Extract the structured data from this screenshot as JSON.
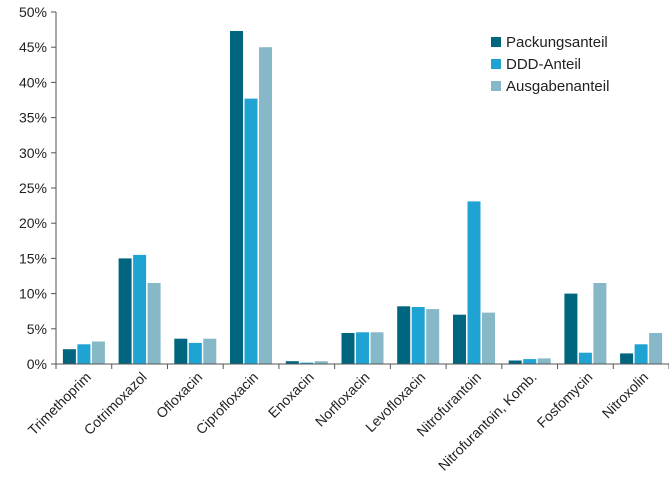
{
  "chart_data": {
    "type": "bar",
    "categories": [
      "Trimethoprim",
      "Cotrimoxazol",
      "Ofloxacin",
      "Ciprofloxacin",
      "Enoxacin",
      "Norfloxacin",
      "Levofloxacin",
      "Nitrofurantoin",
      "Nitrofurantoin, Komb.",
      "Fosfomycin",
      "Nitroxolin"
    ],
    "series": [
      {
        "name": "Packungsanteil",
        "color": "#006680",
        "values": [
          2.1,
          15.0,
          3.6,
          47.3,
          0.4,
          4.4,
          8.2,
          7.0,
          0.5,
          10.0,
          1.5
        ]
      },
      {
        "name": "DDD-Anteil",
        "color": "#1fa3d2",
        "values": [
          2.8,
          15.5,
          3.0,
          37.7,
          0.2,
          4.5,
          8.1,
          23.1,
          0.7,
          1.6,
          2.8
        ]
      },
      {
        "name": "Ausgabenanteil",
        "color": "#86b8c8",
        "values": [
          3.2,
          11.5,
          3.6,
          45.0,
          0.4,
          4.5,
          7.8,
          7.3,
          0.8,
          11.5,
          4.4
        ]
      }
    ],
    "yticks": [
      "0%",
      "5%",
      "10%",
      "15%",
      "20%",
      "25%",
      "30%",
      "35%",
      "40%",
      "45%",
      "50%"
    ],
    "ylim": [
      0,
      50
    ],
    "title": "",
    "xlabel": "",
    "ylabel": "",
    "grid": false,
    "legend": "top-right"
  }
}
